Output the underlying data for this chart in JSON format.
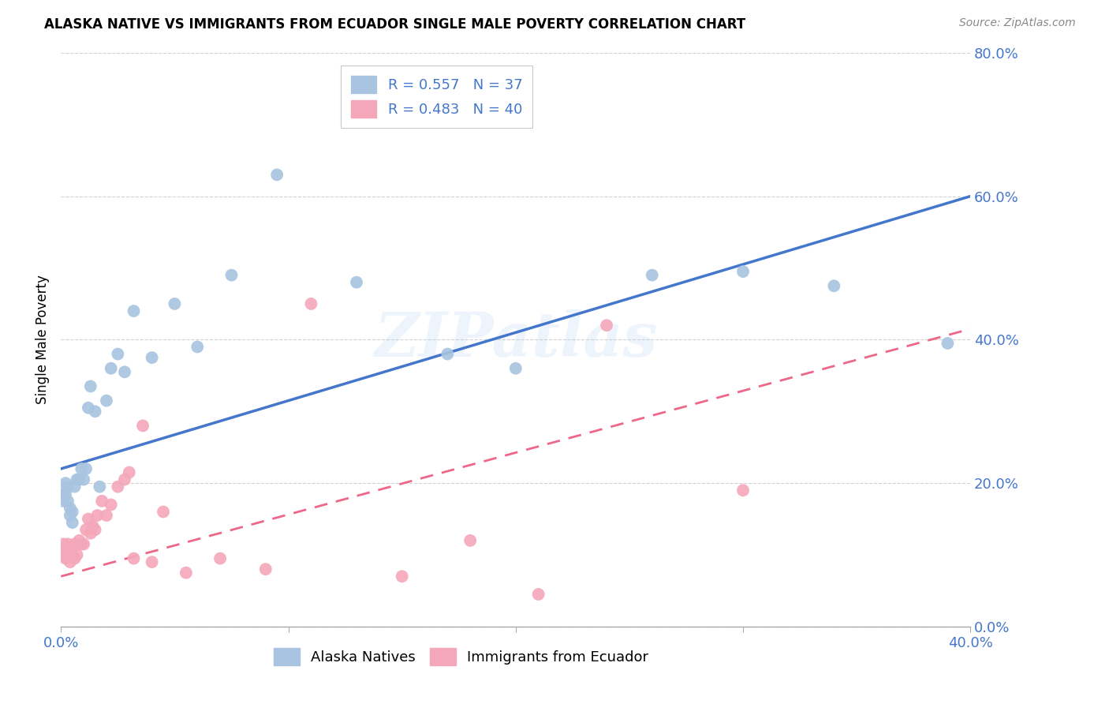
{
  "title": "ALASKA NATIVE VS IMMIGRANTS FROM ECUADOR SINGLE MALE POVERTY CORRELATION CHART",
  "source": "Source: ZipAtlas.com",
  "ylabel": "Single Male Poverty",
  "watermark": "ZIPatlas",
  "legend_top": [
    {
      "label": "R = 0.557   N = 37",
      "color": "#a8c4e0"
    },
    {
      "label": "R = 0.483   N = 40",
      "color": "#f4a7b9"
    }
  ],
  "legend_labels_bottom": [
    "Alaska Natives",
    "Immigrants from Ecuador"
  ],
  "alaska_natives_x": [
    0.001,
    0.001,
    0.002,
    0.002,
    0.003,
    0.003,
    0.004,
    0.004,
    0.005,
    0.005,
    0.006,
    0.007,
    0.008,
    0.009,
    0.01,
    0.011,
    0.012,
    0.013,
    0.015,
    0.017,
    0.02,
    0.022,
    0.025,
    0.028,
    0.032,
    0.04,
    0.05,
    0.06,
    0.075,
    0.095,
    0.13,
    0.17,
    0.2,
    0.26,
    0.3,
    0.34,
    0.39
  ],
  "alaska_natives_y": [
    0.185,
    0.175,
    0.2,
    0.185,
    0.195,
    0.175,
    0.165,
    0.155,
    0.16,
    0.145,
    0.195,
    0.205,
    0.205,
    0.22,
    0.205,
    0.22,
    0.305,
    0.335,
    0.3,
    0.195,
    0.315,
    0.36,
    0.38,
    0.355,
    0.44,
    0.375,
    0.45,
    0.39,
    0.49,
    0.63,
    0.48,
    0.38,
    0.36,
    0.49,
    0.495,
    0.475,
    0.395
  ],
  "ecuador_x": [
    0.001,
    0.001,
    0.002,
    0.002,
    0.003,
    0.003,
    0.004,
    0.004,
    0.005,
    0.006,
    0.006,
    0.007,
    0.008,
    0.009,
    0.01,
    0.011,
    0.012,
    0.013,
    0.014,
    0.015,
    0.016,
    0.018,
    0.02,
    0.022,
    0.025,
    0.028,
    0.03,
    0.032,
    0.036,
    0.04,
    0.045,
    0.055,
    0.07,
    0.09,
    0.11,
    0.15,
    0.18,
    0.21,
    0.24,
    0.3
  ],
  "ecuador_y": [
    0.115,
    0.1,
    0.11,
    0.095,
    0.115,
    0.1,
    0.105,
    0.09,
    0.11,
    0.095,
    0.115,
    0.1,
    0.12,
    0.115,
    0.115,
    0.135,
    0.15,
    0.13,
    0.14,
    0.135,
    0.155,
    0.175,
    0.155,
    0.17,
    0.195,
    0.205,
    0.215,
    0.095,
    0.28,
    0.09,
    0.16,
    0.075,
    0.095,
    0.08,
    0.45,
    0.07,
    0.12,
    0.045,
    0.42,
    0.19
  ],
  "xlim": [
    0.0,
    0.4
  ],
  "ylim": [
    0.0,
    0.8
  ],
  "yticks": [
    0.0,
    0.2,
    0.4,
    0.6,
    0.8
  ],
  "xticks": [
    0.0,
    0.1,
    0.2,
    0.3,
    0.4
  ],
  "blue_line_x0": 0.0,
  "blue_line_y0": 0.22,
  "blue_line_x1": 0.4,
  "blue_line_y1": 0.6,
  "pink_line_x0": 0.0,
  "pink_line_y0": 0.07,
  "pink_line_x1": 0.4,
  "pink_line_y1": 0.415,
  "blue_line_color": "#4477cc",
  "pink_line_color": "#ee6688",
  "scatter_blue": "#a8c4e0",
  "scatter_pink": "#f4a7b9",
  "background": "#ffffff",
  "grid_color": "#cccccc",
  "tick_color": "#4477cc"
}
